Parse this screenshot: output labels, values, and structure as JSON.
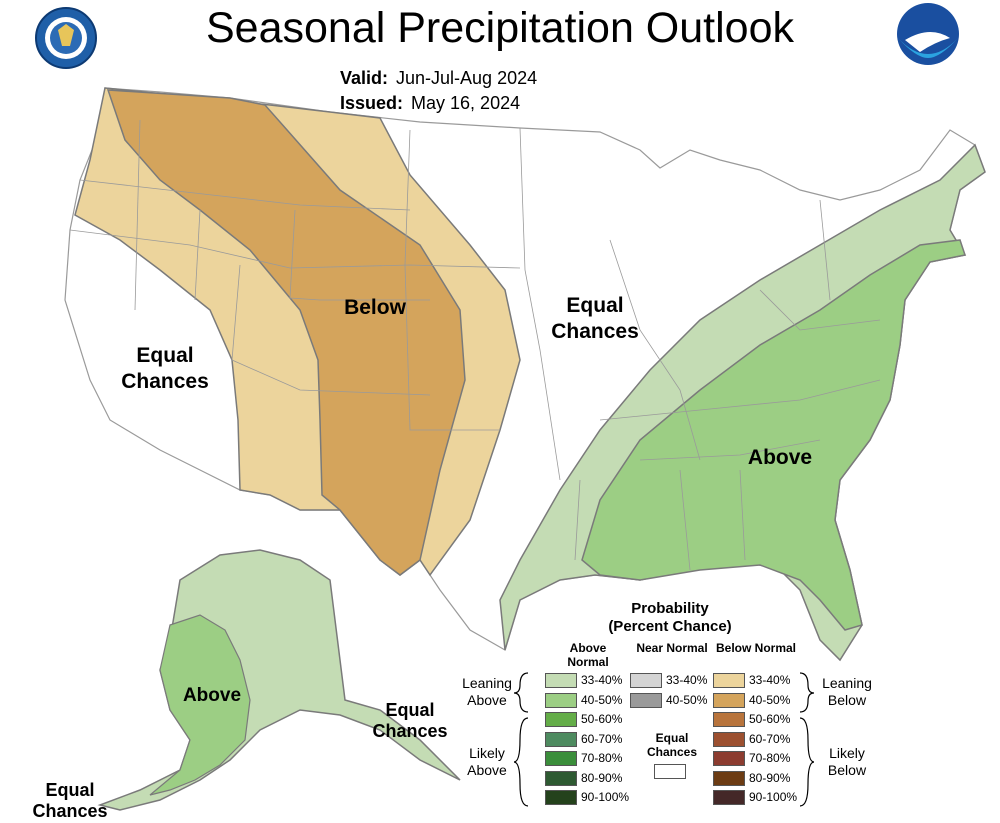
{
  "title": "Seasonal Precipitation Outlook",
  "valid_label": "Valid:",
  "valid_value": "Jun-Jul-Aug 2024",
  "issued_label": "Issued:",
  "issued_value": "May 16, 2024",
  "logos": {
    "left": "Department of Commerce seal",
    "right": "NOAA"
  },
  "regions": {
    "west_equal": "Equal Chances",
    "below": "Below",
    "central_equal": "Equal Chances",
    "above": "Above",
    "alaska_above": "Above",
    "alaska_equal_se": "Equal Chances",
    "alaska_equal_sw": "Equal Chances"
  },
  "legend": {
    "title1": "Probability",
    "title2": "(Percent Chance)",
    "col_above": "Above Normal",
    "col_near": "Near Normal",
    "col_below": "Below Normal",
    "leaning_above": "Leaning Above",
    "likely_above": "Likely Above",
    "leaning_below": "Leaning Below",
    "likely_below": "Likely Below",
    "equal_chances": "Equal Chances",
    "ranges": [
      "33-40%",
      "40-50%",
      "50-60%",
      "60-70%",
      "70-80%",
      "80-90%",
      "90-100%"
    ],
    "near_ranges": [
      "33-40%",
      "40-50%"
    ],
    "colors_above": [
      "#c4dcb4",
      "#9cce84",
      "#64ad48",
      "#4e8b60",
      "#3b8e3b",
      "#2e5a32",
      "#24421c"
    ],
    "colors_near": [
      "#d4d4d4",
      "#9a9a9a"
    ],
    "colors_below": [
      "#ecd49c",
      "#d4a45c",
      "#b8743c",
      "#9c5030",
      "#8c3c30",
      "#6c3c14",
      "#442828"
    ]
  }
}
